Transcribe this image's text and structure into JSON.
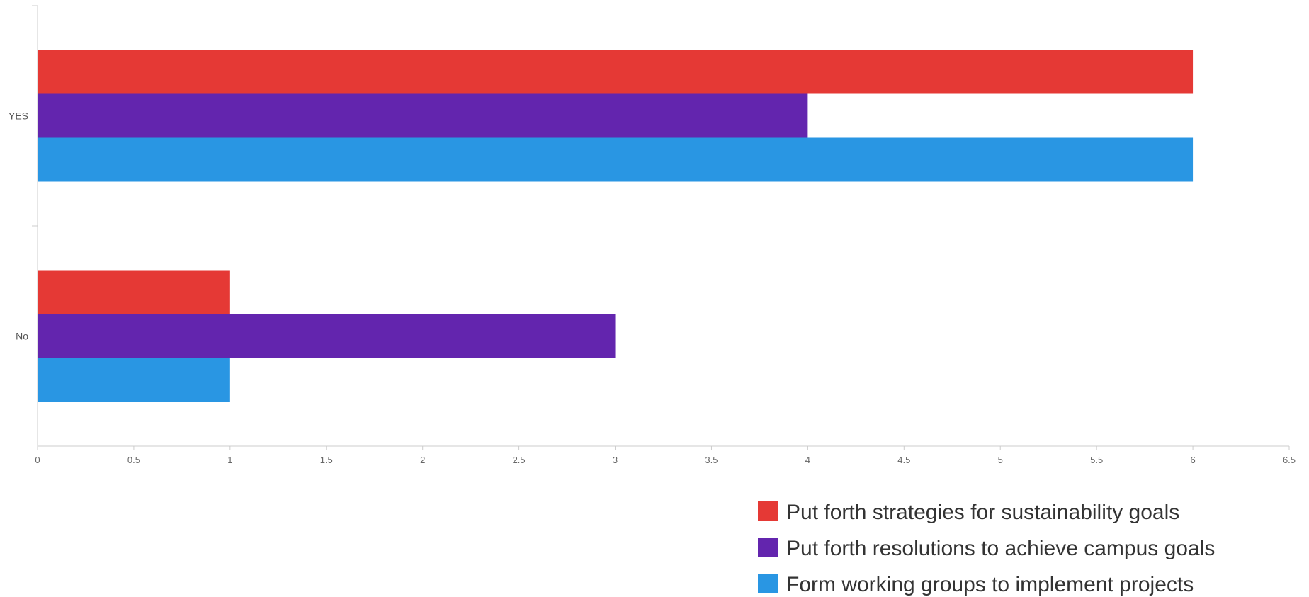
{
  "chart_data": {
    "type": "bar",
    "orientation": "horizontal",
    "categories": [
      "YES",
      "No"
    ],
    "series": [
      {
        "name": "Put forth strategies for sustainability goals",
        "values": [
          6,
          1
        ],
        "color": "#e53935"
      },
      {
        "name": "Put forth resolutions to achieve campus goals",
        "values": [
          4,
          3
        ],
        "color": "#6325ae"
      },
      {
        "name": "Form working groups to implement projects",
        "values": [
          6,
          1
        ],
        "color": "#2996e3"
      }
    ],
    "xlim": [
      0,
      6.5
    ],
    "x_ticks": [
      0,
      0.5,
      1,
      1.5,
      2,
      2.5,
      3,
      3.5,
      4,
      4.5,
      5,
      5.5,
      6,
      6.5
    ],
    "grid": false,
    "legend_position": "bottom-right"
  }
}
